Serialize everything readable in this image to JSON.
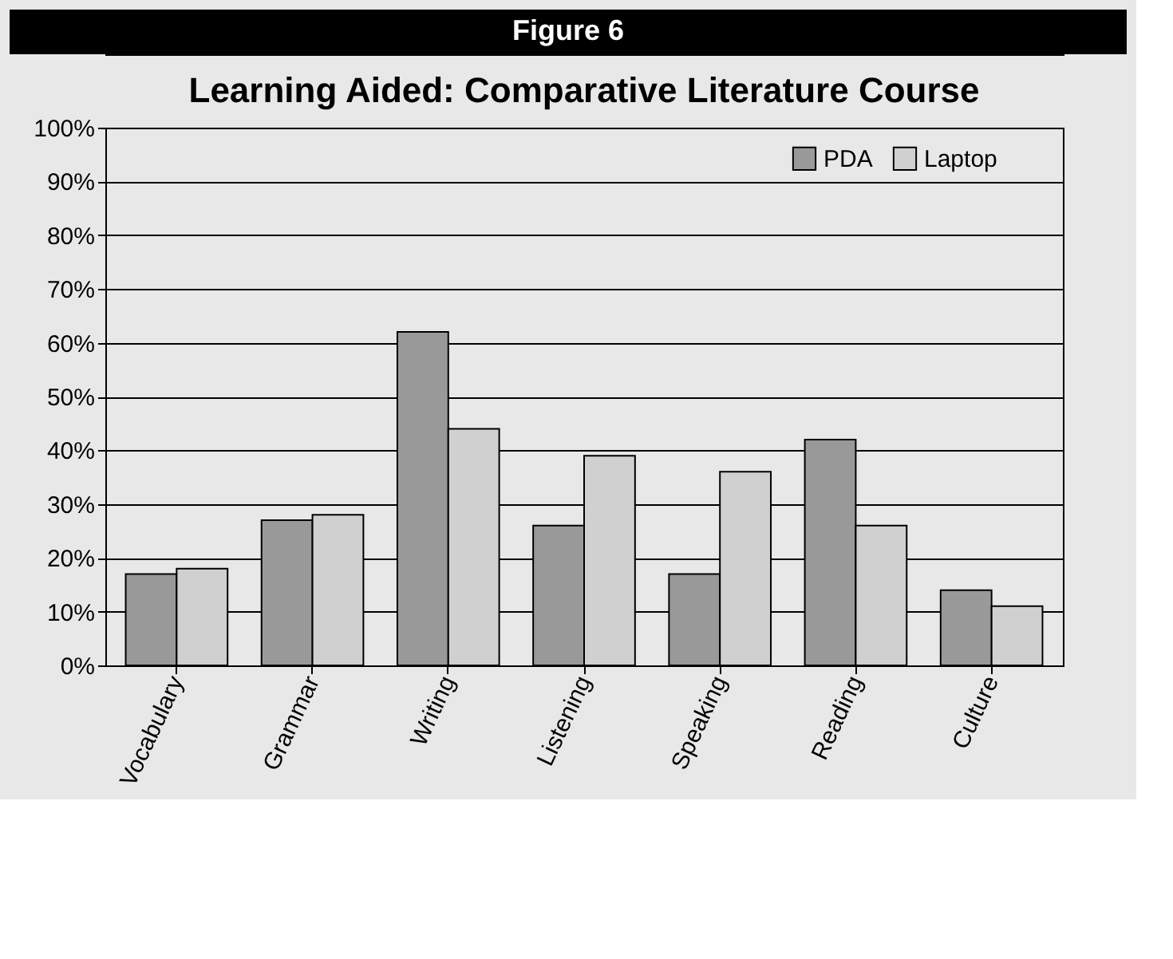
{
  "chart_data": {
    "type": "bar",
    "title": "Learning Aided: Comparative Literature Course",
    "annotations": [
      "Figure 6"
    ],
    "categories": [
      "Vocabulary",
      "Grammar",
      "Writing",
      "Listening",
      "Speaking",
      "Reading",
      "Culture"
    ],
    "series": [
      {
        "name": "PDA",
        "color": "#999999",
        "values": [
          17,
          27,
          62,
          26,
          17,
          42,
          14
        ]
      },
      {
        "name": "Laptop",
        "color": "#d0d0d0",
        "values": [
          18,
          28,
          44,
          39,
          36,
          26,
          11
        ]
      }
    ],
    "ylim": [
      0,
      100
    ],
    "yticks": [
      {
        "value": 0,
        "label": "0%"
      },
      {
        "value": 10,
        "label": "10%"
      },
      {
        "value": 20,
        "label": "20%"
      },
      {
        "value": 30,
        "label": "30%"
      },
      {
        "value": 40,
        "label": "40%"
      },
      {
        "value": 50,
        "label": "50%"
      },
      {
        "value": 60,
        "label": "60%"
      },
      {
        "value": 70,
        "label": "70%"
      },
      {
        "value": 80,
        "label": "80%"
      },
      {
        "value": 90,
        "label": "90%"
      },
      {
        "value": 100,
        "label": "100%"
      }
    ],
    "grid": "y",
    "legend": "top right"
  }
}
